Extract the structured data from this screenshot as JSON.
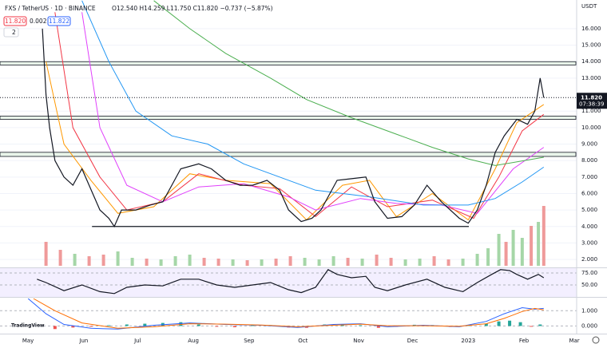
{
  "header": {
    "symbol": "FXS / TetherUS · 1D · BINANCE",
    "ohlc": "O12.540 H14.259 L11.750 C11.820 −0.737 (−5.87%)",
    "bid": "11.820",
    "spread": "0.002",
    "ask": "11.822",
    "indicators_count": "2",
    "currency": "USDT",
    "logo": "TradingView"
  },
  "chart_data": [
    {
      "type": "line",
      "color": "#131722",
      "x": [
        8,
        10,
        12,
        15,
        20,
        25,
        30,
        36,
        40,
        45,
        48,
        52,
        60,
        68,
        75,
        80,
        85,
        95,
        102,
        110,
        118,
        125,
        133,
        140,
        145,
        152,
        158,
        163,
        172,
        180,
        188,
        193,
        200,
        208,
        215,
        222,
        230,
        240,
        245,
        250,
        255,
        260,
        265,
        272,
        278,
        282,
        285,
        287
      ],
      "values": [
        16,
        12,
        10,
        8,
        7,
        6.5,
        7.5,
        6,
        5,
        4.5,
        4,
        5,
        5,
        5.3,
        5.5,
        6.5,
        7.5,
        7.8,
        7.5,
        6.8,
        6.5,
        6.5,
        6.8,
        6.2,
        5,
        4.3,
        4.5,
        5,
        6.8,
        6.9,
        7,
        5.5,
        4.5,
        4.6,
        5.3,
        6.5,
        5.5,
        4.5,
        4.2,
        5,
        6.5,
        8.5,
        9.5,
        10.5,
        10.2,
        11,
        13,
        11.82
      ],
      "xlim": [
        -15.6,
        305.3
      ],
      "ylim": [
        1.52,
        17.74
      ],
      "yticks": [
        {
          "value": 2,
          "label": "2.000"
        },
        {
          "value": 3,
          "label": "3.000"
        },
        {
          "value": 4,
          "label": "4.000"
        },
        {
          "value": 5,
          "label": "5.000"
        },
        {
          "value": 6,
          "label": "6.000"
        },
        {
          "value": 7,
          "label": "7.000"
        },
        {
          "value": 8,
          "label": "8.000"
        },
        {
          "value": 9,
          "label": "9.000"
        },
        {
          "value": 10,
          "label": "10.000"
        },
        {
          "value": 11,
          "label": "11.000"
        },
        {
          "value": 13,
          "label": "13.000"
        },
        {
          "value": 14,
          "label": "14.000"
        },
        {
          "value": 15,
          "label": "15.000"
        },
        {
          "value": 16,
          "label": "16.000"
        }
      ],
      "xticks": [
        {
          "value": 0,
          "label": "May"
        },
        {
          "value": 31,
          "label": "Jun"
        },
        {
          "value": 61,
          "label": "Jul"
        },
        {
          "value": 92,
          "label": "Aug"
        },
        {
          "value": 123,
          "label": "Sep"
        },
        {
          "value": 153,
          "label": "Oct"
        },
        {
          "value": 184,
          "label": "Nov"
        },
        {
          "value": 214,
          "label": "Dec"
        },
        {
          "value": 245,
          "label": "2023"
        },
        {
          "value": 276,
          "label": "Feb"
        },
        {
          "value": 304,
          "label": "Mar"
        }
      ],
      "series": [
        {
          "color": "#ff9800",
          "x": [
            10,
            20,
            35,
            50,
            70,
            90,
            110,
            135,
            155,
            175,
            190,
            205,
            225,
            245,
            260,
            272,
            287
          ],
          "values": [
            14,
            9,
            6.8,
            4.8,
            5.2,
            7.2,
            6.8,
            6.6,
            4.4,
            6.5,
            6.8,
            4.6,
            6,
            4.4,
            7.5,
            10.3,
            11.4
          ]
        },
        {
          "color": "#f23645",
          "x": [
            15,
            25,
            40,
            55,
            75,
            95,
            120,
            140,
            160,
            180,
            200,
            225,
            248,
            262,
            275,
            287
          ],
          "values": [
            17,
            10,
            7,
            5,
            5.5,
            7.2,
            6.5,
            6.3,
            4.6,
            6.4,
            5.2,
            5.6,
            4.5,
            7,
            9.8,
            10.8
          ]
        },
        {
          "color": "#e040fb",
          "x": [
            30,
            40,
            55,
            75,
            95,
            120,
            145,
            160,
            185,
            205,
            230,
            250,
            270,
            287
          ],
          "values": [
            17,
            10,
            6.5,
            5.5,
            6.4,
            6.6,
            5.8,
            5,
            5.7,
            5.4,
            5.3,
            4.8,
            7.5,
            8.8
          ]
        },
        {
          "color": "#2196f3",
          "x": [
            30,
            45,
            60,
            80,
            100,
            120,
            140,
            160,
            190,
            220,
            245,
            260,
            275,
            287
          ],
          "values": [
            17.7,
            14,
            11,
            9.5,
            9,
            7.8,
            7,
            6.2,
            5.8,
            5.3,
            5.3,
            5.7,
            6.7,
            7.6
          ]
        },
        {
          "color": "#4caf50",
          "x": [
            70,
            90,
            110,
            135,
            155,
            180,
            205,
            225,
            245,
            260,
            287
          ],
          "values": [
            17.7,
            16,
            14.5,
            13,
            11.7,
            10.6,
            9.6,
            8.8,
            8.1,
            7.7,
            8.2
          ]
        }
      ],
      "zones": [
        [
          13.8,
          14.0
        ],
        [
          10.5,
          10.7
        ],
        [
          8.25,
          8.5
        ]
      ],
      "support": {
        "value": 4.0,
        "x": [
          35.6,
          245.3
        ]
      },
      "last_price": {
        "value": 11.82,
        "label": "11.820"
      },
      "countdown": "07:38:39",
      "volume": {
        "ylim": [
          0,
          80
        ],
        "up_color": "#a5d6a7",
        "down_color": "#ef9a9a",
        "x": [
          10,
          18,
          26,
          34,
          42,
          50,
          58,
          66,
          74,
          82,
          90,
          98,
          106,
          114,
          122,
          130,
          138,
          146,
          154,
          162,
          170,
          178,
          186,
          194,
          202,
          210,
          218,
          226,
          234,
          242,
          250,
          256,
          262,
          266,
          270,
          275,
          280,
          284,
          287
        ],
        "values": [
          30,
          20,
          15,
          12,
          14,
          18,
          10,
          9,
          8,
          12,
          14,
          10,
          9,
          8,
          7,
          8,
          9,
          12,
          10,
          8,
          12,
          10,
          9,
          14,
          10,
          8,
          9,
          12,
          8,
          9,
          15,
          22,
          40,
          30,
          45,
          35,
          50,
          55,
          75
        ],
        "up": [
          false,
          false,
          true,
          false,
          false,
          true,
          true,
          false,
          true,
          true,
          true,
          false,
          false,
          true,
          false,
          true,
          false,
          false,
          true,
          true,
          true,
          false,
          true,
          false,
          false,
          true,
          true,
          false,
          false,
          true,
          true,
          true,
          true,
          false,
          true,
          true,
          false,
          true,
          false
        ]
      }
    },
    {
      "type": "line",
      "color": "#131722",
      "x": [
        5,
        10,
        20,
        30,
        40,
        48,
        55,
        65,
        75,
        85,
        95,
        105,
        115,
        125,
        135,
        145,
        152,
        160,
        167,
        172,
        180,
        188,
        193,
        200,
        210,
        222,
        232,
        242,
        250,
        258,
        263,
        268,
        272,
        278,
        284,
        287
      ],
      "values": [
        62,
        55,
        38,
        50,
        36,
        32,
        45,
        50,
        48,
        62,
        62,
        50,
        45,
        50,
        55,
        40,
        34,
        45,
        82,
        72,
        65,
        68,
        45,
        38,
        50,
        62,
        45,
        36,
        55,
        72,
        82,
        80,
        72,
        62,
        72,
        65
      ],
      "xlim": [
        -15.6,
        305.3
      ],
      "ylim": [
        25,
        85
      ],
      "yticks": [
        {
          "value": 75,
          "label": "75.00"
        },
        {
          "value": 50,
          "label": "50.00"
        }
      ]
    },
    {
      "type": "macd",
      "xlim": [
        -15.6,
        305.3
      ],
      "ylim": [
        -0.5,
        1.8
      ],
      "yticks": [
        {
          "value": 1,
          "label": "1.000"
        },
        {
          "value": 0,
          "label": "0.000"
        }
      ],
      "series": [
        {
          "color": "#2962ff",
          "x": [
            0,
            10,
            20,
            35,
            50,
            70,
            90,
            110,
            130,
            150,
            170,
            185,
            200,
            220,
            240,
            255,
            265,
            275,
            282,
            287
          ],
          "values": [
            1.8,
            0.8,
            0.1,
            -0.15,
            -0.2,
            0.05,
            0.2,
            0.1,
            0.05,
            -0.1,
            0.1,
            0.15,
            -0.05,
            0.05,
            -0.05,
            0.3,
            0.8,
            1.2,
            1.1,
            1.15
          ]
        },
        {
          "color": "#ff6d00",
          "x": [
            3,
            15,
            30,
            50,
            70,
            90,
            110,
            130,
            150,
            170,
            185,
            200,
            220,
            240,
            255,
            265,
            275,
            282,
            287
          ],
          "values": [
            1.8,
            1.0,
            0.2,
            -0.15,
            -0.05,
            0.15,
            0.12,
            0.06,
            -0.05,
            0.05,
            0.12,
            0.02,
            0.02,
            -0.02,
            0.15,
            0.5,
            0.95,
            1.15,
            1.05
          ]
        }
      ],
      "histogram": {
        "pos_color": "#26a69a",
        "neg_color": "#ef5350",
        "x": [
          15,
          25,
          35,
          45,
          55,
          65,
          75,
          85,
          95,
          105,
          115,
          125,
          135,
          145,
          155,
          165,
          175,
          185,
          195,
          205,
          215,
          225,
          235,
          245,
          255,
          262,
          268,
          274,
          280,
          285
        ],
        "values": [
          -0.2,
          -0.1,
          -0.05,
          0.05,
          0.1,
          0.15,
          0.2,
          0.25,
          0.1,
          -0.05,
          -0.08,
          0.05,
          0.06,
          -0.1,
          -0.12,
          0.1,
          0.12,
          0.05,
          -0.12,
          -0.05,
          0.08,
          0.06,
          -0.06,
          0.05,
          0.15,
          0.3,
          0.35,
          0.25,
          -0.05,
          0.1
        ]
      }
    }
  ]
}
